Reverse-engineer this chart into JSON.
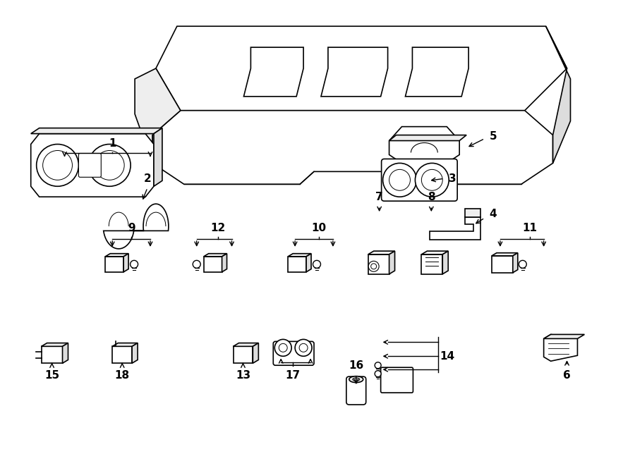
{
  "title": "",
  "background_color": "#ffffff",
  "line_color": "#000000",
  "line_width": 1.2,
  "font_size_label": 11,
  "fig_width": 9.0,
  "fig_height": 6.61,
  "dpi": 100
}
